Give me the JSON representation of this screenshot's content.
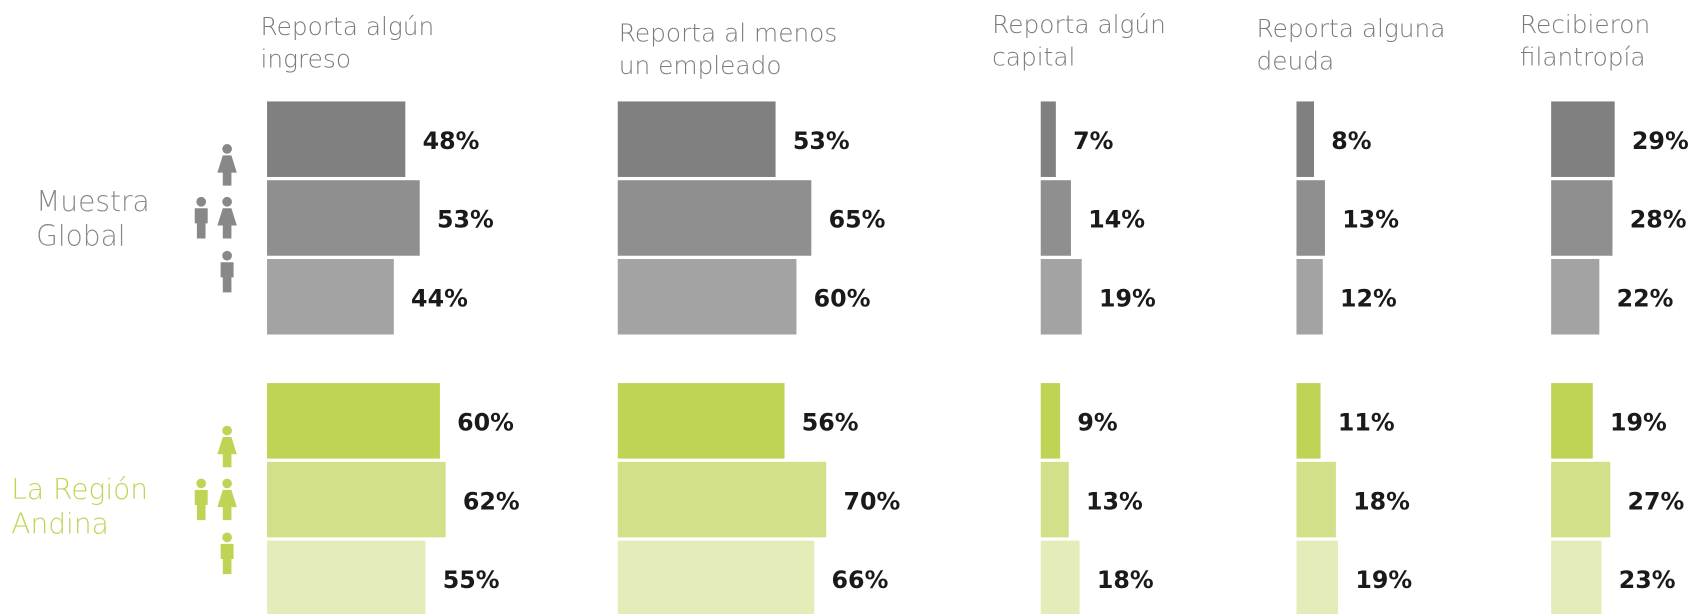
{
  "chart_data": {
    "type": "bar",
    "row_groups": [
      [
        "Muestra",
        "Global"
      ],
      [
        "La Región",
        "Andina"
      ]
    ],
    "group_colors": [
      "#888888",
      "#bfd455"
    ],
    "colors": [
      "#808080",
      "#8f8f8f",
      "#a3a3a3",
      "#bfd455",
      "#d2e08a",
      "#e4edb9"
    ],
    "panels": [
      {
        "title": [
          "Reporta algún",
          "ingreso"
        ],
        "values": [
          48,
          53,
          44,
          60,
          62,
          55
        ],
        "value_labels": [
          "48%",
          "53%",
          "44%",
          "60%",
          "62%",
          "55%"
        ]
      },
      {
        "title": [
          "Reporta al menos",
          "un empleado"
        ],
        "values": [
          53,
          65,
          60,
          56,
          70,
          66
        ],
        "value_labels": [
          "53%",
          "65%",
          "60%",
          "56%",
          "70%",
          "66%"
        ]
      },
      {
        "title": [
          "Reporta algún",
          "capital"
        ],
        "values": [
          7,
          14,
          19,
          9,
          13,
          18
        ],
        "value_labels": [
          "7%",
          "14%",
          "19%",
          "9%",
          "13%",
          "18%"
        ]
      },
      {
        "title": [
          "Reporta alguna",
          "deuda"
        ],
        "values": [
          8,
          13,
          12,
          11,
          18,
          19
        ],
        "value_labels": [
          "8%",
          "13%",
          "12%",
          "11%",
          "18%",
          "19%"
        ]
      },
      {
        "title": [
          "Recibieron",
          "filantropía"
        ],
        "values": [
          29,
          28,
          22,
          19,
          27,
          23
        ],
        "value_labels": [
          "29%",
          "28%",
          "22%",
          "19%",
          "27%",
          "23%"
        ]
      }
    ]
  }
}
